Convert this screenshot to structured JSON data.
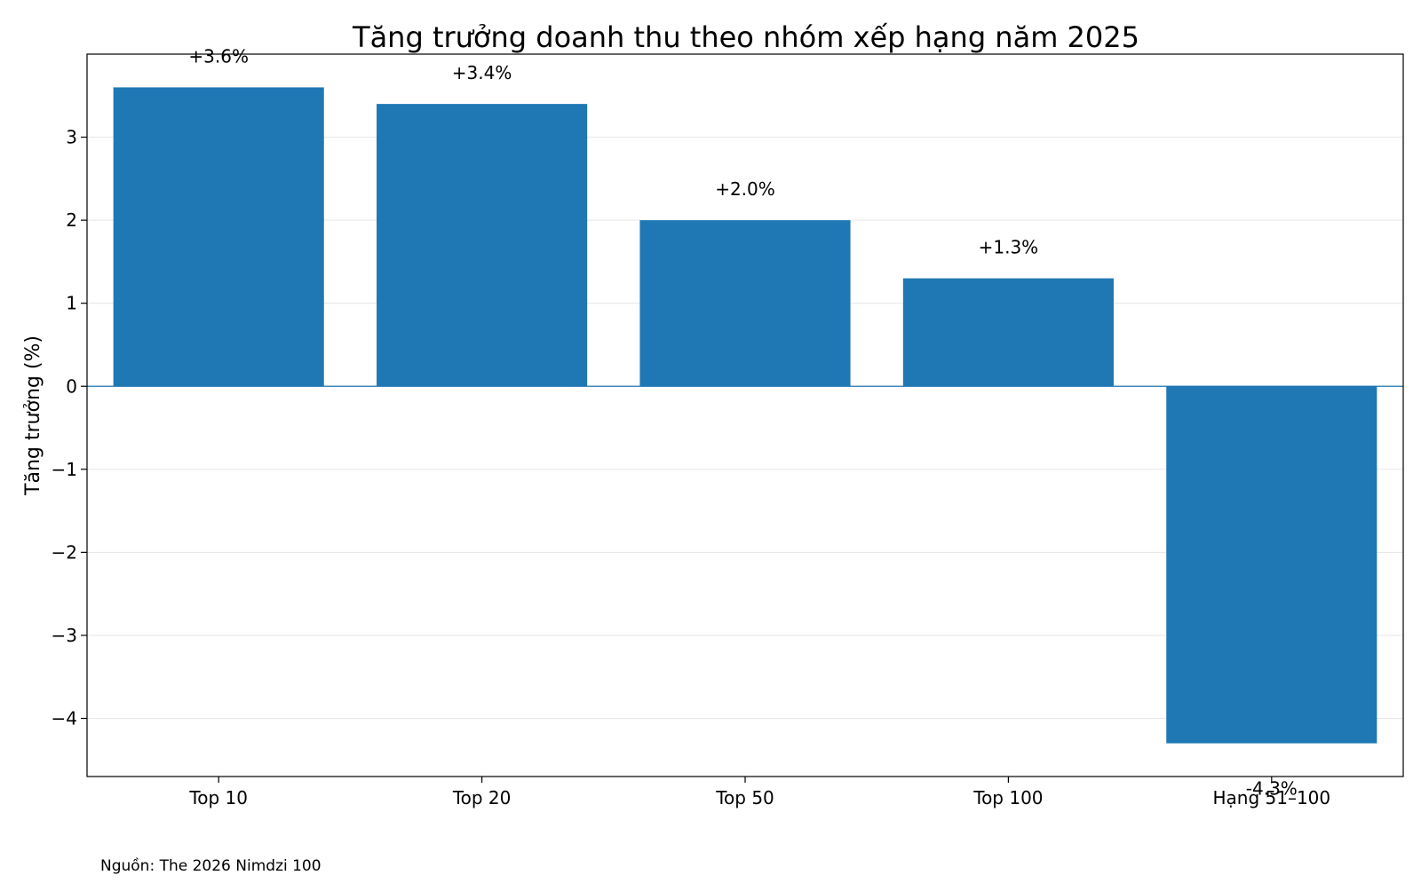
{
  "chart_data": {
    "type": "bar",
    "title": "Tăng trưởng doanh thu theo nhóm xếp hạng năm 2025",
    "xlabel": "",
    "ylabel": "Tăng trưởng (%)",
    "categories": [
      "Top 10",
      "Top 20",
      "Top 50",
      "Top 100",
      "Hạng 51–100"
    ],
    "values": [
      3.6,
      3.4,
      2.0,
      1.3,
      -4.3
    ],
    "data_labels": [
      "+3.6%",
      "+3.4%",
      "+2.0%",
      "+1.3%",
      "-4.3%"
    ],
    "ylim": [
      -4.7,
      4.0
    ],
    "yticks": [
      -4,
      -3,
      -2,
      -1,
      0,
      1,
      2,
      3
    ],
    "ytick_labels": [
      "−4",
      "−3",
      "−2",
      "−1",
      "0",
      "1",
      "2",
      "3"
    ],
    "grid": true,
    "bar_color": "#1f77b4",
    "zero_line_color": "#1f77b4",
    "source_note": "Nguồn: The 2026 Nimdzi 100"
  }
}
